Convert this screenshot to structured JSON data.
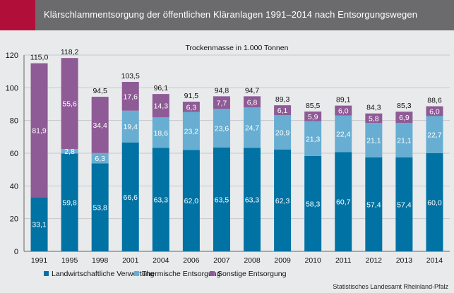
{
  "header": {
    "title": "Klärschlammentsorgung der öffentlichen Kläranlagen 1991–2014 nach Entsorgungswegen"
  },
  "source": "Statistisches Landesamt Rheinland-Pfalz",
  "colors": {
    "header_bg": "#6b6b6e",
    "accent": "#b10f3a",
    "plot_bg": "#e9eaec"
  },
  "chart_data": {
    "type": "bar",
    "stacked": true,
    "subtitle": "Trockenmasse in 1.000 Tonnen",
    "categories": [
      "1991",
      "1995",
      "1998",
      "2001",
      "2004",
      "2006",
      "2007",
      "2008",
      "2009",
      "2010",
      "2011",
      "2012",
      "2013",
      "2014"
    ],
    "series": [
      {
        "name": "Landwirtschaftliche Verwertung",
        "color": "#0072a3",
        "values": [
          33.1,
          59.8,
          53.8,
          66.6,
          63.3,
          62.0,
          63.5,
          63.3,
          62.3,
          58.3,
          60.7,
          57.4,
          57.4,
          60.0
        ],
        "labels": [
          "33,1",
          "59,8",
          "53,8",
          "66,6",
          "63,3",
          "62,0",
          "63,5",
          "63,3",
          "62,3",
          "58,3",
          "60,7",
          "57,4",
          "57,4",
          "60,0"
        ]
      },
      {
        "name": "Thermische Entsorgung",
        "color": "#67aed2",
        "values": [
          0,
          2.8,
          6.3,
          19.4,
          18.6,
          23.2,
          23.6,
          24.7,
          20.9,
          21.3,
          22.4,
          21.1,
          21.1,
          22.7
        ],
        "labels": [
          "",
          "2,8",
          "6,3",
          "19,4",
          "18,6",
          "23,2",
          "23,6",
          "24,7",
          "20,9",
          "21,3",
          "22,4",
          "21,1",
          "21,1",
          "22,7"
        ]
      },
      {
        "name": "Sonstige Entsorgung",
        "color": "#8e5b96",
        "values": [
          81.9,
          55.6,
          34.4,
          17.6,
          14.3,
          6.3,
          7.7,
          6.8,
          6.1,
          5.9,
          6.0,
          5.8,
          6.9,
          6.0
        ],
        "labels": [
          "81,9",
          "55,6",
          "34,4",
          "17,6",
          "14,3",
          "6,3",
          "7,7",
          "6,8",
          "6,1",
          "5,9",
          "6,0",
          "5,8",
          "6,9",
          "6,0"
        ]
      }
    ],
    "totals": [
      "115,0",
      "118,2",
      "94,5",
      "103,5",
      "96,1",
      "91,5",
      "94,8",
      "94,7",
      "89,3",
      "85,5",
      "89,1",
      "84,3",
      "85,3",
      "88,6"
    ],
    "ylim": [
      0,
      120
    ],
    "yticks": [
      "0",
      "20",
      "40",
      "60",
      "80",
      "100",
      "120"
    ],
    "grid": true,
    "legend": "bottom"
  }
}
